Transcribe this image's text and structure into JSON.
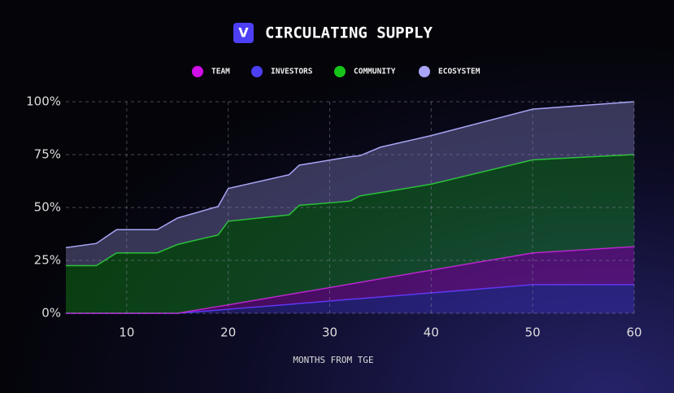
{
  "chart_data": {
    "type": "stacked_area",
    "title": "CIRCULATING SUPPLY",
    "logo": "V",
    "x": [
      4,
      7,
      9,
      13,
      15,
      19,
      20,
      26,
      27,
      32,
      33,
      35,
      40,
      50,
      60
    ],
    "series": [
      {
        "name": "TEAM",
        "color": "#d10fe8",
        "values": [
          0,
          0,
          0,
          0,
          0,
          1.7,
          2.1,
          4.7,
          5.1,
          7.2,
          7.7,
          8.6,
          10.8,
          15,
          18
        ]
      },
      {
        "name": "INVESTORS",
        "color": "#4c3ff5",
        "values": [
          0,
          0,
          0,
          0,
          0,
          1.5,
          1.9,
          4.2,
          4.6,
          6.6,
          6.9,
          7.7,
          9.6,
          13.5,
          13.5
        ]
      },
      {
        "name": "COMMUNITY",
        "color": "#16c41a",
        "values": [
          22.5,
          22.5,
          28.5,
          28.5,
          32.5,
          33.8,
          39.5,
          37.6,
          41.3,
          39.2,
          40.9,
          40.7,
          40.6,
          44,
          43.5
        ]
      },
      {
        "name": "ECOSYSTEM",
        "color": "#a9a5f6",
        "values": [
          8.5,
          10.5,
          11,
          11,
          12.5,
          13.5,
          15.5,
          19,
          19,
          21,
          19,
          21.5,
          23,
          24,
          25
        ]
      }
    ],
    "xlabel": "MONTHS FROM TGE",
    "xlim": [
      4,
      60
    ],
    "xticks": [
      10,
      20,
      30,
      40,
      50,
      60
    ],
    "ylim": [
      0,
      100
    ],
    "yticks": [
      {
        "value": 0,
        "label": "0%"
      },
      {
        "value": 25,
        "label": "25%"
      },
      {
        "value": 50,
        "label": "50%"
      },
      {
        "value": 75,
        "label": "75%"
      },
      {
        "value": 100,
        "label": "100%"
      }
    ],
    "grid": true
  }
}
